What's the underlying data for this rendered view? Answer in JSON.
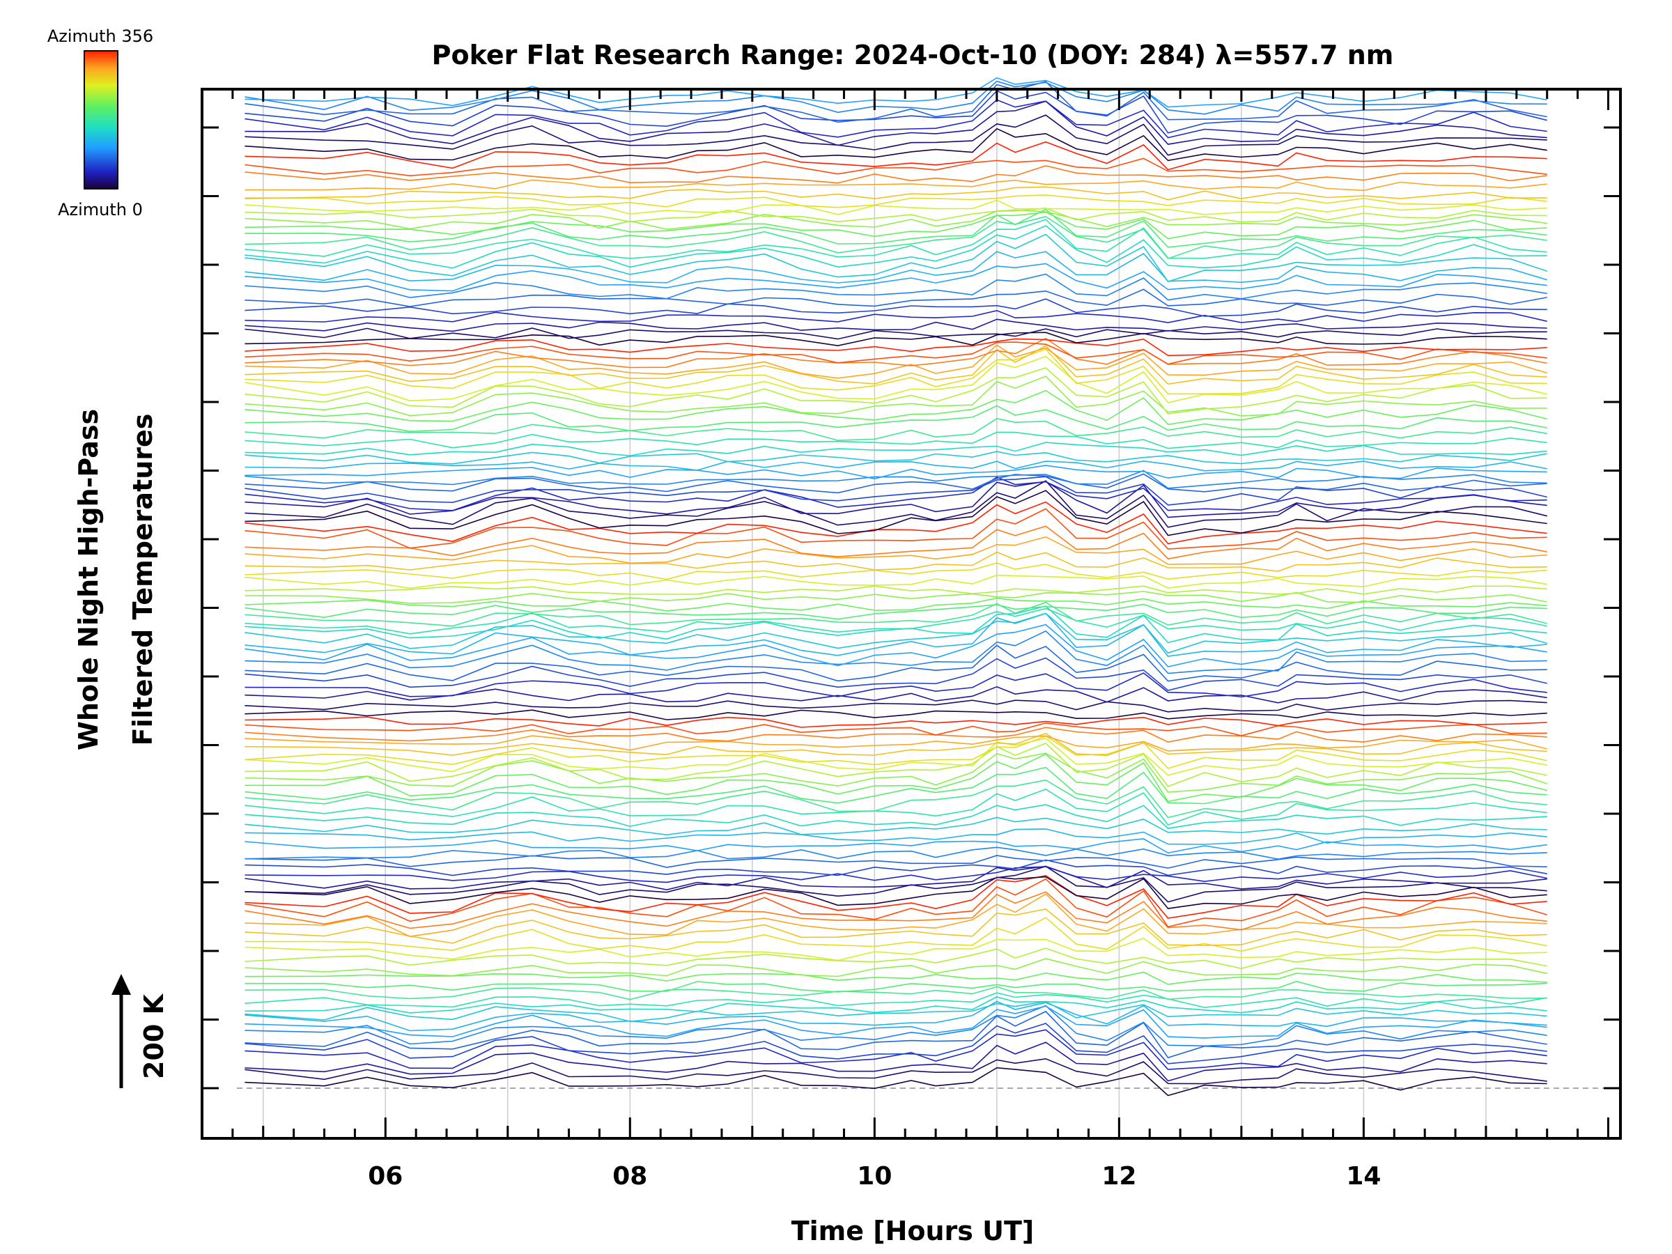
{
  "chart_data": {
    "type": "line",
    "title": "Poker Flat Research Range: 2024-Oct-10 (DOY: 284) λ=557.7 nm",
    "xlabel": "Time [Hours UT]",
    "ylabel_line1": "Whole Night High-Pass",
    "ylabel_line2": "Filtered Temperatures",
    "scale_label": "200 K",
    "xlim": [
      4.5,
      16.1
    ],
    "x_ticks": [
      "06",
      "08",
      "10",
      "12",
      "14"
    ],
    "x_tick_values": [
      6,
      8,
      10,
      12,
      14
    ],
    "grid": "vertical",
    "legend": {
      "type": "colorbar",
      "placement": "top-left",
      "top_label": "Azimuth 356",
      "bottom_label": "Azimuth 0",
      "colormap": "rainbow"
    },
    "time_range": [
      4.85,
      15.5
    ],
    "series_count": 128,
    "series_description": "Stacked filtered temperature traces, one per azimuth, offset vertically; colour cycles with azimuth from 0 to 356",
    "common_shape": {
      "x": [
        4.85,
        5.5,
        5.85,
        6.2,
        6.55,
        6.9,
        7.2,
        7.5,
        7.75,
        8.0,
        8.3,
        8.55,
        8.8,
        9.1,
        9.4,
        9.7,
        10.0,
        10.3,
        10.5,
        10.8,
        11.0,
        11.15,
        11.4,
        11.65,
        11.9,
        12.2,
        12.4,
        12.7,
        13.0,
        13.3,
        13.45,
        13.7,
        14.0,
        14.3,
        14.6,
        14.9,
        15.2,
        15.5
      ],
      "y": [
        20,
        10,
        25,
        0,
        0,
        30,
        40,
        20,
        10,
        5,
        5,
        15,
        20,
        30,
        10,
        0,
        5,
        15,
        10,
        20,
        60,
        50,
        70,
        20,
        10,
        50,
        -10,
        0,
        0,
        5,
        25,
        10,
        15,
        10,
        25,
        30,
        20,
        10
      ]
    },
    "colors": {
      "background": "#ffffff",
      "axes": "#000000",
      "grid": "#cccccc",
      "baseline": "#aaaaaa"
    }
  }
}
